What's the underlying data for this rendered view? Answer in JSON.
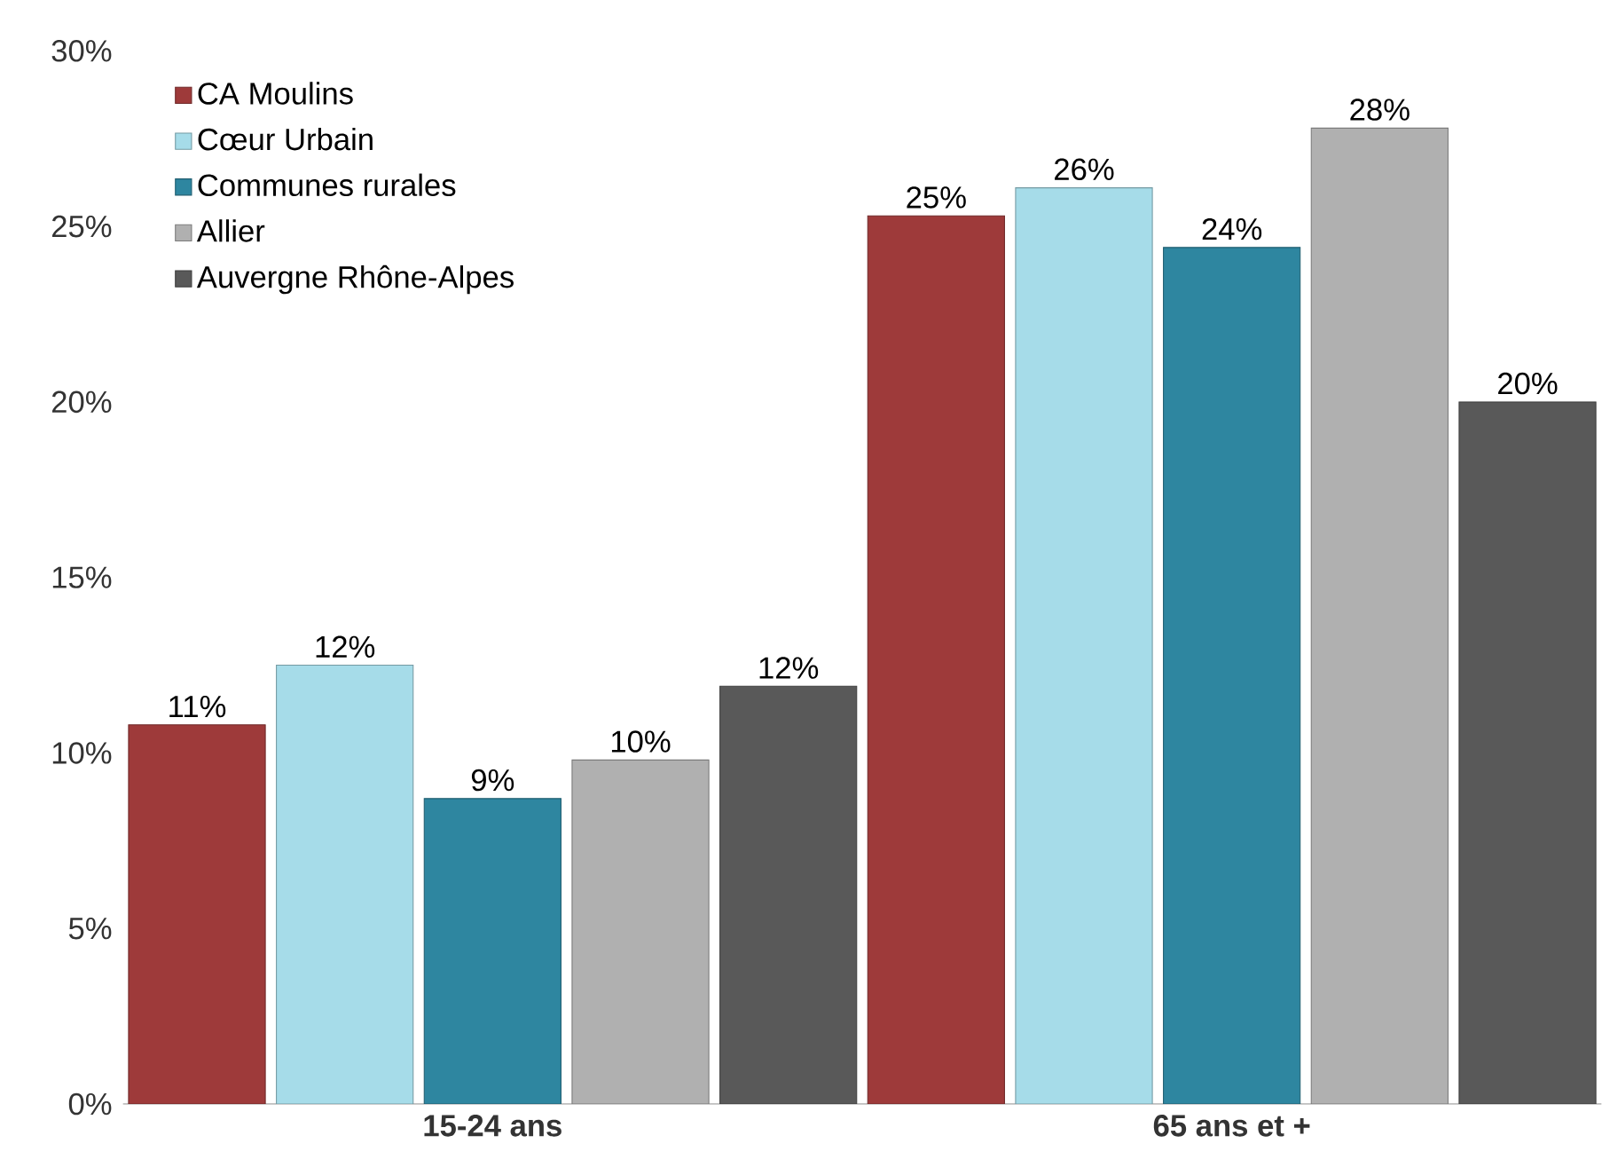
{
  "chart_data": {
    "type": "bar",
    "categories": [
      "15-24 ans",
      "65 ans et +"
    ],
    "ylim": [
      0,
      30
    ],
    "yticks": [
      {
        "value": 0,
        "label": "0%"
      },
      {
        "value": 5,
        "label": "5%"
      },
      {
        "value": 10,
        "label": "10%"
      },
      {
        "value": 15,
        "label": "15%"
      },
      {
        "value": 20,
        "label": "20%"
      },
      {
        "value": 25,
        "label": "25%"
      },
      {
        "value": 30,
        "label": "30%"
      }
    ],
    "legend": "top left",
    "grid": false,
    "series": [
      {
        "name": "CA Moulins",
        "color": "#9e3a3a",
        "values": [
          10.8,
          25.3
        ],
        "value_labels": [
          "11%",
          "25%"
        ]
      },
      {
        "name": "Cœur Urbain",
        "color": "#a6dce9",
        "values": [
          12.5,
          26.1
        ],
        "value_labels": [
          "12%",
          "26%"
        ]
      },
      {
        "name": "Communes rurales",
        "color": "#2e86a0",
        "values": [
          8.7,
          24.4
        ],
        "value_labels": [
          "9%",
          "24%"
        ]
      },
      {
        "name": "Allier",
        "color": "#b0b0b0",
        "values": [
          9.8,
          27.8
        ],
        "value_labels": [
          "10%",
          "28%"
        ]
      },
      {
        "name": "Auvergne Rhône-Alpes",
        "color": "#595959",
        "values": [
          11.9,
          20.0
        ],
        "value_labels": [
          "12%",
          "20%"
        ]
      }
    ]
  }
}
